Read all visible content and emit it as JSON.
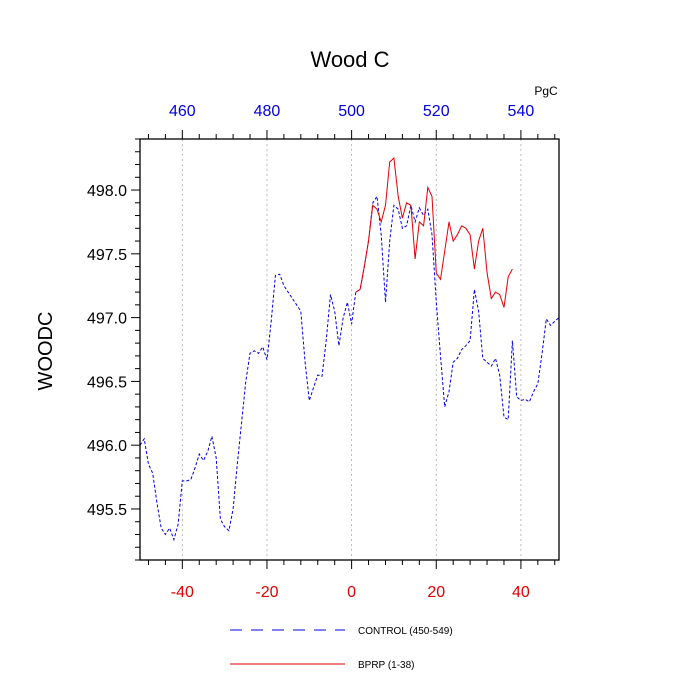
{
  "chart_data": {
    "type": "line",
    "title": "Wood C",
    "units_label": "PgC",
    "ylabel": "WOODC",
    "xlabel": "",
    "xlim": [
      -50,
      49
    ],
    "ylim": [
      495.1,
      498.4
    ],
    "grid": "vertical dashed lines at labeled x ticks",
    "bottom_axis": {
      "ticks": [
        -40,
        -20,
        0,
        20,
        40
      ],
      "tick_labels": [
        "-40",
        "-20",
        "0",
        "20",
        "40"
      ],
      "color": "#e00000"
    },
    "top_axis": {
      "ticks": [
        460,
        480,
        500,
        520,
        540
      ],
      "tick_labels": [
        "460",
        "480",
        "500",
        "520",
        "540"
      ],
      "offset": 500,
      "color": "#0000dd"
    },
    "y_ticks": [
      495.5,
      496.0,
      496.5,
      497.0,
      497.5,
      498.0
    ],
    "y_tick_labels": [
      "495.5",
      "496.0",
      "496.5",
      "497.0",
      "497.5",
      "498.0"
    ],
    "legend_position": "bottom, below plot",
    "series": [
      {
        "name": "CONTROL (450-549)",
        "color": "#0000dd",
        "style": "dashed",
        "x": [
          -50,
          -49,
          -48,
          -47,
          -46,
          -45,
          -44,
          -43,
          -42,
          -41,
          -40,
          -39,
          -38,
          -37,
          -36,
          -35,
          -34,
          -33,
          -32,
          -31,
          -30,
          -29,
          -28,
          -27,
          -26,
          -25,
          -24,
          -23,
          -22,
          -21,
          -20,
          -19,
          -18,
          -17,
          -16,
          -15,
          -14,
          -13,
          -12,
          -11,
          -10,
          -9,
          -8,
          -7,
          -6,
          -5,
          -4,
          -3,
          -2,
          -1,
          0,
          1,
          2,
          3,
          4,
          5,
          6,
          7,
          8,
          9,
          10,
          11,
          12,
          13,
          14,
          15,
          16,
          17,
          18,
          19,
          20,
          21,
          22,
          23,
          24,
          25,
          26,
          27,
          28,
          29,
          30,
          31,
          32,
          33,
          34,
          35,
          36,
          37,
          38,
          39,
          40,
          41,
          42,
          43,
          44,
          45,
          46,
          47,
          48,
          49
        ],
        "values": [
          496.0,
          496.05,
          495.85,
          495.78,
          495.55,
          495.35,
          495.3,
          495.35,
          495.26,
          495.38,
          495.72,
          495.72,
          495.73,
          495.82,
          495.93,
          495.88,
          495.95,
          496.07,
          495.9,
          495.42,
          495.36,
          495.33,
          495.5,
          495.85,
          496.18,
          496.5,
          496.72,
          496.74,
          496.72,
          496.77,
          496.67,
          496.97,
          497.33,
          497.34,
          497.25,
          497.2,
          497.15,
          497.1,
          497.05,
          496.65,
          496.35,
          496.45,
          496.55,
          496.54,
          496.82,
          497.18,
          497.05,
          496.78,
          497.0,
          497.12,
          496.95,
          497.2,
          497.22,
          497.4,
          497.6,
          497.9,
          497.95,
          497.65,
          497.12,
          497.6,
          497.88,
          497.85,
          497.7,
          497.72,
          497.88,
          497.75,
          497.86,
          497.8,
          497.85,
          497.65,
          497.12,
          496.7,
          496.3,
          496.42,
          496.65,
          496.68,
          496.75,
          496.78,
          496.82,
          497.22,
          497.05,
          496.68,
          496.65,
          496.62,
          496.68,
          496.55,
          496.22,
          496.2,
          496.82,
          496.38,
          496.35,
          496.36,
          496.34,
          496.42,
          496.48,
          496.72,
          496.99,
          496.94,
          496.97,
          497.0
        ]
      },
      {
        "name": "BPRP (1-38)",
        "color": "#e00000",
        "style": "solid",
        "x": [
          1,
          2,
          3,
          4,
          5,
          6,
          7,
          8,
          9,
          10,
          11,
          12,
          13,
          14,
          15,
          16,
          17,
          18,
          19,
          20,
          21,
          22,
          23,
          24,
          25,
          26,
          27,
          28,
          29,
          30,
          31,
          32,
          33,
          34,
          35,
          36,
          37,
          38
        ],
        "values": [
          497.2,
          497.22,
          497.4,
          497.6,
          497.88,
          497.85,
          497.75,
          497.88,
          498.22,
          498.25,
          497.95,
          497.78,
          497.9,
          497.88,
          497.46,
          497.75,
          497.72,
          498.02,
          497.95,
          497.35,
          497.3,
          497.52,
          497.75,
          497.6,
          497.65,
          497.72,
          497.7,
          497.65,
          497.38,
          497.6,
          497.7,
          497.35,
          497.15,
          497.2,
          497.18,
          497.08,
          497.32,
          497.38
        ]
      }
    ]
  }
}
